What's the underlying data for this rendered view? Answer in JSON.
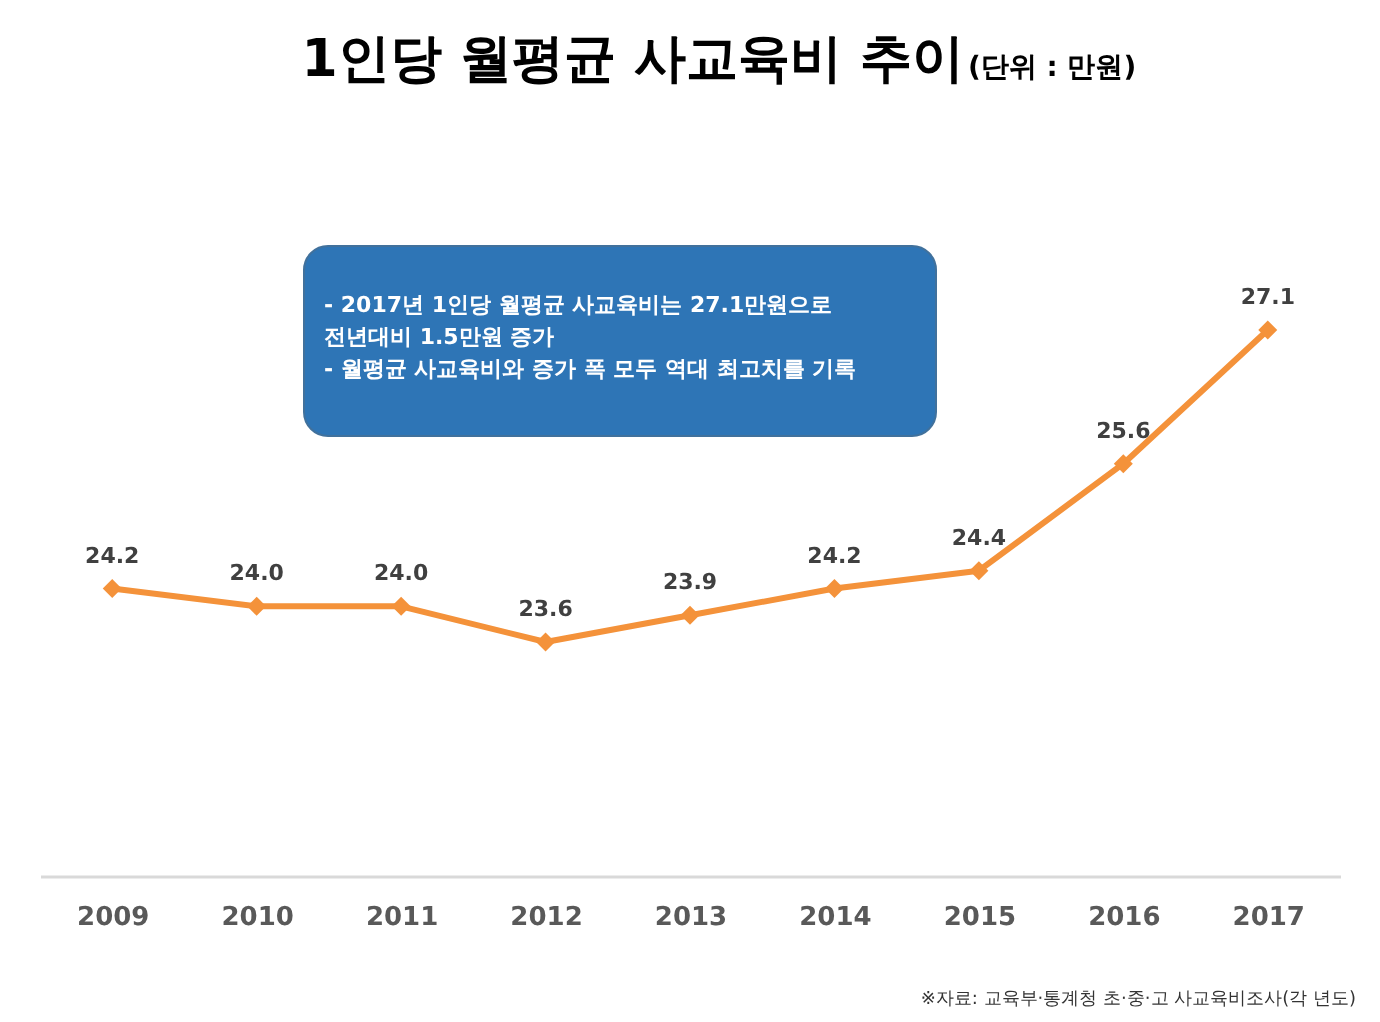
{
  "chart_data": {
    "type": "line",
    "title": "1인당 월평균 사교육비 추이",
    "subtitle": "(단위 : 만원)",
    "categories": [
      "2009",
      "2010",
      "2011",
      "2012",
      "2013",
      "2014",
      "2015",
      "2016",
      "2017"
    ],
    "series": [
      {
        "color": "#f4923a",
        "values": [
          24.2,
          24.0,
          24.0,
          23.6,
          23.9,
          24.2,
          24.4,
          25.6,
          27.1
        ],
        "value_labels": [
          "24.2",
          "24.0",
          "24.0",
          "23.6",
          "23.9",
          "24.2",
          "24.4",
          "25.6",
          "27.1"
        ]
      }
    ],
    "marker": "diamond",
    "annotations": [
      "- 2017년 1인당 월평균 사교육비는 27.1만원으로 전년대비 1.5만원 증가",
      "- 월평균 사교육비와 증가 폭 모두 역대 최고치를 기록",
      "※자료: 교육부·통계청 초·중·고 사교육비조사(각 년도)"
    ]
  }
}
